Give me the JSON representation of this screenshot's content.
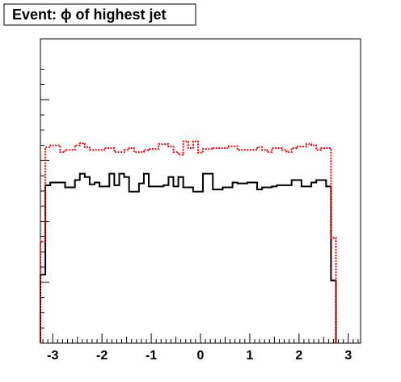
{
  "chart_data": {
    "type": "histogram-step",
    "title": "Event: ϕ of highest jet",
    "xlabel": "",
    "ylabel": "",
    "xlim": [
      -3.25,
      3.25
    ],
    "ylim": [
      0,
      100
    ],
    "y_tick_labels": "none",
    "x_ticks": [
      {
        "value": -3,
        "label": "-3"
      },
      {
        "value": -2,
        "label": "-2"
      },
      {
        "value": -1,
        "label": "-1"
      },
      {
        "value": 0,
        "label": "0"
      },
      {
        "value": 1,
        "label": "1"
      },
      {
        "value": 2,
        "label": "2"
      },
      {
        "value": 3,
        "label": "3"
      }
    ],
    "grid": false,
    "bin_start": -3.25,
    "bin_width": 0.1,
    "series": [
      {
        "color": "#000000",
        "style": "solid",
        "values": [
          22.5,
          51.9,
          52.8,
          52.8,
          52.8,
          51.2,
          51.2,
          53.6,
          55.7,
          54.6,
          52.2,
          52.8,
          51.5,
          51.5,
          55.7,
          51.9,
          55.7,
          54.6,
          49.8,
          49.8,
          52.5,
          55.7,
          51.5,
          51.5,
          51.5,
          51.9,
          54.6,
          51.5,
          54.6,
          51.2,
          51.2,
          49.8,
          49.8,
          55.7,
          55.7,
          50.5,
          50.5,
          51.2,
          51.2,
          52.8,
          52.5,
          52.5,
          52.8,
          52.8,
          50.5,
          51.2,
          51.2,
          51.5,
          51.9,
          51.9,
          51.9,
          53.6,
          53.6,
          51.5,
          51.5,
          52.8,
          53.6,
          53.6,
          51.5,
          20.6
        ]
      },
      {
        "color": "#ff0000",
        "style": "dotted",
        "values": [
          33.3,
          64.4,
          65.0,
          65.0,
          62.8,
          63.5,
          63.5,
          65.0,
          65.7,
          64.4,
          63.5,
          63.5,
          63.5,
          64.1,
          64.1,
          62.8,
          62.8,
          63.5,
          64.1,
          62.8,
          62.8,
          63.5,
          63.8,
          63.8,
          65.4,
          65.4,
          64.6,
          62.8,
          61.9,
          66.3,
          64.1,
          66.3,
          62.6,
          63.8,
          63.8,
          64.1,
          64.1,
          64.1,
          64.7,
          64.7,
          63.5,
          63.5,
          63.5,
          63.5,
          64.4,
          63.5,
          62.8,
          64.1,
          64.1,
          63.5,
          62.8,
          64.1,
          64.6,
          64.6,
          65.4,
          65.0,
          63.5,
          64.1,
          64.1,
          34.6
        ]
      }
    ]
  }
}
